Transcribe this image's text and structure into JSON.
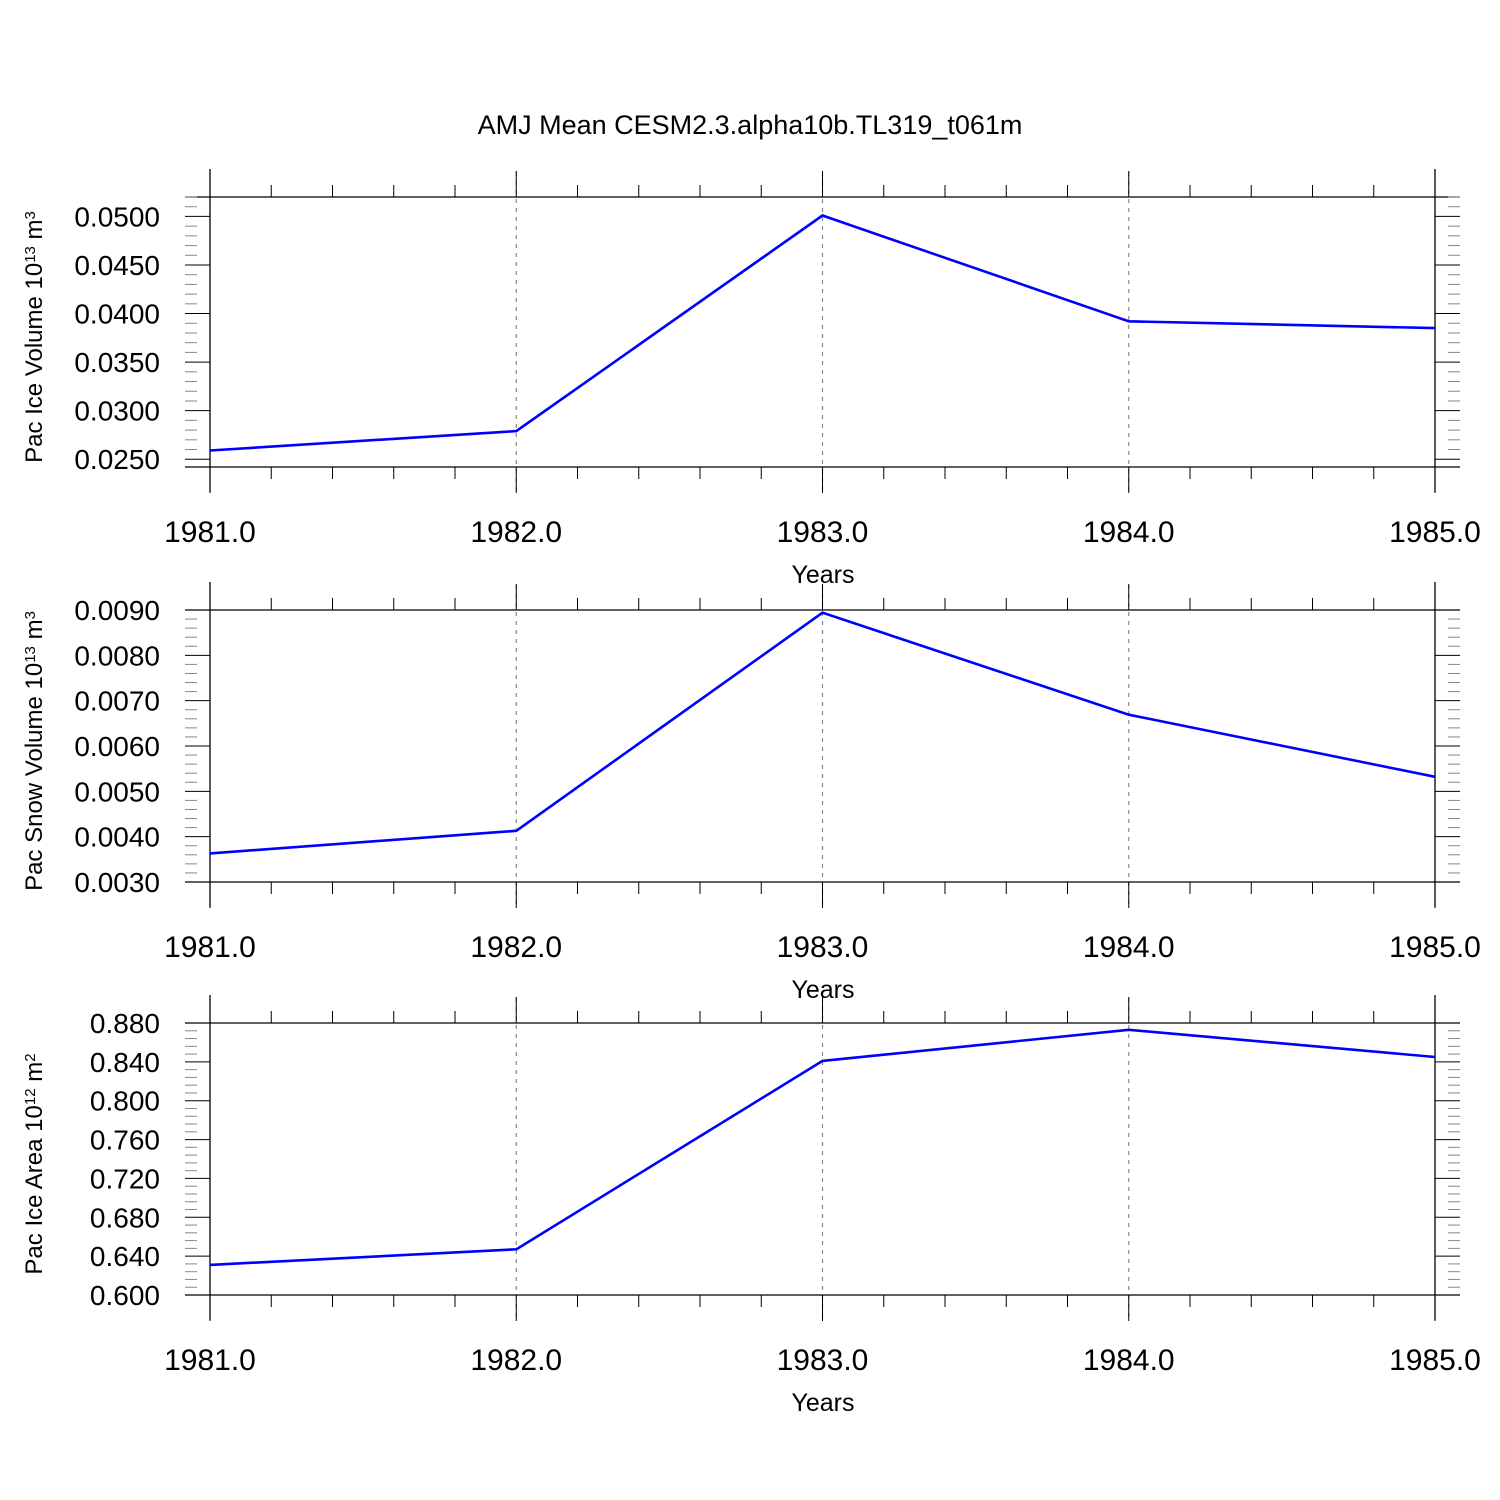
{
  "title": "AMJ Mean CESM2.3.alpha10b.TL319_t061m",
  "colors": {
    "line": "#0000ff",
    "axis": "#000000",
    "grid": "#888888"
  },
  "chart_data": [
    {
      "type": "line",
      "xlabel": "Years",
      "ylabel": {
        "text": "Pac Ice Volume 10",
        "exp": "13",
        "unit": " m",
        "unit_exp": "3"
      },
      "x": [
        1981,
        1982,
        1983,
        1984,
        1985
      ],
      "xticks": [
        "1981.0",
        "1982.0",
        "1983.0",
        "1984.0",
        "1985.0"
      ],
      "yticks": [
        "0.0250",
        "0.0300",
        "0.0350",
        "0.0400",
        "0.0450",
        "0.0500"
      ],
      "ytick_values": [
        0.025,
        0.03,
        0.035,
        0.04,
        0.045,
        0.05
      ],
      "xlim": [
        1981,
        1985
      ],
      "ylim": [
        0.0242,
        0.052
      ],
      "series": [
        {
          "values": [
            0.0259,
            0.0279,
            0.0501,
            0.0392,
            0.0385
          ]
        }
      ],
      "grid": "vertical dashed at major x ticks"
    },
    {
      "type": "line",
      "xlabel": "Years",
      "ylabel": {
        "text": "Pac Snow Volume 10",
        "exp": "13",
        "unit": " m",
        "unit_exp": "3"
      },
      "x": [
        1981,
        1982,
        1983,
        1984,
        1985
      ],
      "xticks": [
        "1981.0",
        "1982.0",
        "1983.0",
        "1984.0",
        "1985.0"
      ],
      "yticks": [
        "0.0030",
        "0.0040",
        "0.0050",
        "0.0060",
        "0.0070",
        "0.0080",
        "0.0090"
      ],
      "ytick_values": [
        0.003,
        0.004,
        0.005,
        0.006,
        0.007,
        0.008,
        0.009
      ],
      "xlim": [
        1981,
        1985
      ],
      "ylim": [
        0.003,
        0.009
      ],
      "series": [
        {
          "values": [
            0.00363,
            0.00413,
            0.00894,
            0.00669,
            0.00532
          ]
        }
      ],
      "grid": "vertical dashed at major x ticks"
    },
    {
      "type": "line",
      "xlabel": "Years",
      "ylabel": {
        "text": "Pac Ice Area 10",
        "exp": "12",
        "unit": " m",
        "unit_exp": "2"
      },
      "x": [
        1981,
        1982,
        1983,
        1984,
        1985
      ],
      "xticks": [
        "1981.0",
        "1982.0",
        "1983.0",
        "1984.0",
        "1985.0"
      ],
      "yticks": [
        "0.600",
        "0.640",
        "0.680",
        "0.720",
        "0.760",
        "0.800",
        "0.840",
        "0.880"
      ],
      "ytick_values": [
        0.6,
        0.64,
        0.68,
        0.72,
        0.76,
        0.8,
        0.84,
        0.88
      ],
      "xlim": [
        1981,
        1985
      ],
      "ylim": [
        0.6,
        0.88
      ],
      "series": [
        {
          "values": [
            0.631,
            0.647,
            0.841,
            0.873,
            0.845
          ]
        }
      ],
      "grid": "vertical dashed at major x ticks"
    }
  ]
}
